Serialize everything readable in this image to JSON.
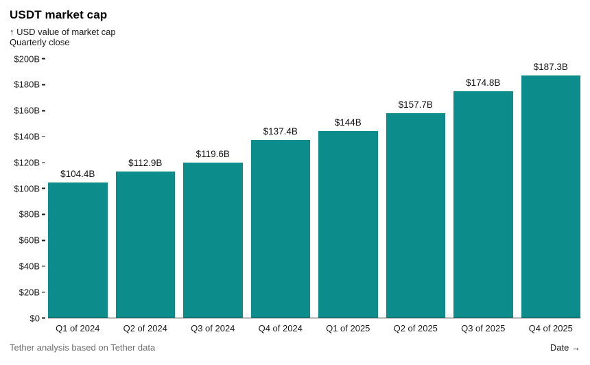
{
  "header": {
    "title": "USDT market cap",
    "subtitle_line1": "↑ USD value of market cap",
    "subtitle_line2": "Quarterly close"
  },
  "footer": {
    "source": "Tether analysis based on Tether data",
    "date_label": "Date →"
  },
  "colors": {
    "bar": "#0d8c8c",
    "axis": "#1a1a1a",
    "muted_text": "#6f6f6f"
  },
  "chart_data": {
    "type": "bar",
    "title": "USDT market cap",
    "subtitle": "USD value of market cap, quarterly close",
    "categories": [
      "Q1 of 2024",
      "Q2 of 2024",
      "Q3 of 2024",
      "Q4 of 2024",
      "Q1 of 2025",
      "Q2 of 2025",
      "Q3 of 2025",
      "Q4 of 2025"
    ],
    "values": [
      104.4,
      112.9,
      119.6,
      137.4,
      144,
      157.7,
      174.8,
      187.3
    ],
    "value_labels": [
      "$104.4B",
      "$112.9B",
      "$119.6B",
      "$137.4B",
      "$144B",
      "$157.7B",
      "$174.8B",
      "$187.3B"
    ],
    "xlabel": "Date",
    "ylabel": "USD value of market cap",
    "ylim": [
      0,
      200
    ],
    "yticks": [
      {
        "value": 0,
        "label": "$0"
      },
      {
        "value": 20,
        "label": "$20B"
      },
      {
        "value": 40,
        "label": "$40B"
      },
      {
        "value": 60,
        "label": "$60B"
      },
      {
        "value": 80,
        "label": "$80B"
      },
      {
        "value": 100,
        "label": "$100B"
      },
      {
        "value": 120,
        "label": "$120B"
      },
      {
        "value": 140,
        "label": "$140B"
      },
      {
        "value": 160,
        "label": "$160B"
      },
      {
        "value": 180,
        "label": "$180B"
      },
      {
        "value": 200,
        "label": "$200B"
      }
    ],
    "grid": false,
    "legend": "none",
    "bar_color": "#0d8c8c"
  }
}
